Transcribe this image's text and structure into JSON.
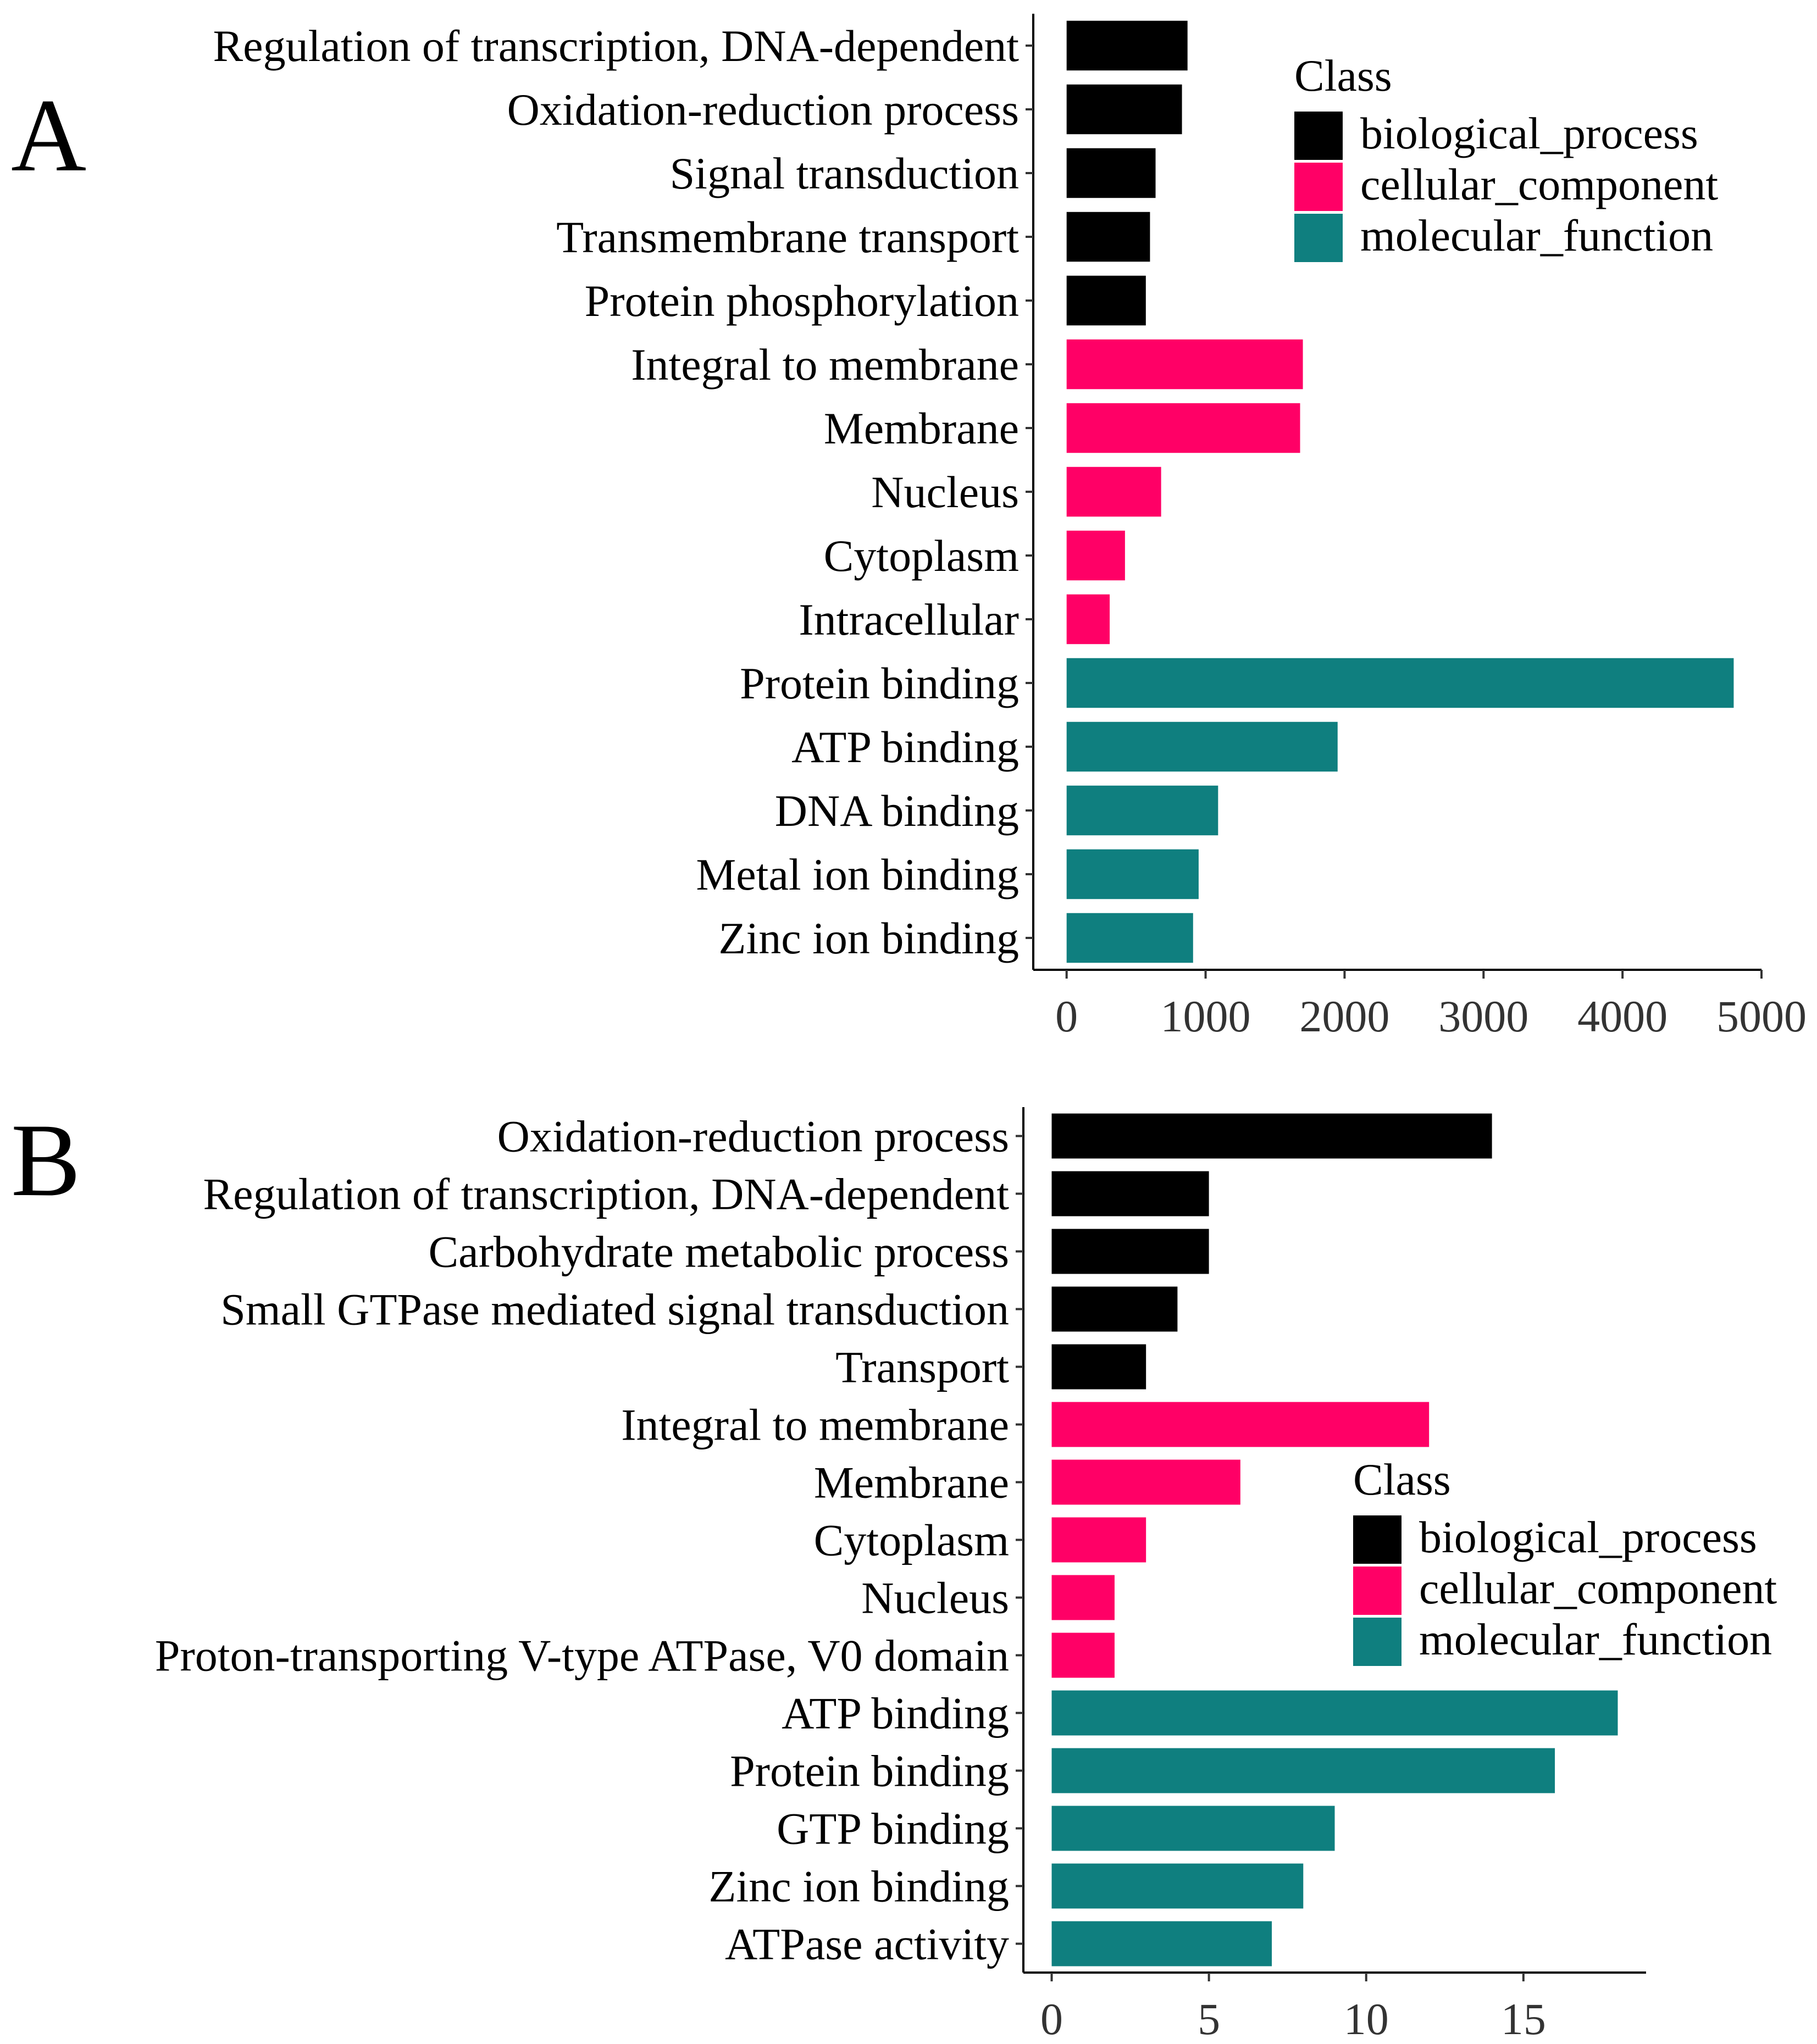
{
  "class_colors": {
    "biological_process": "#000000",
    "cellular_component": "#FF0066",
    "molecular_function": "#0F7F7F"
  },
  "chart_data": [
    {
      "type": "bar",
      "orientation": "horizontal",
      "panel": "A",
      "categories": [
        "Regulation of transcription, DNA-dependent",
        "Oxidation-reduction process",
        "Signal transduction",
        "Transmembrane transport",
        "Protein phosphorylation",
        "Integral to membrane",
        "Membrane",
        "Nucleus",
        "Cytoplasm",
        "Intracellular",
        "Protein binding",
        "ATP binding",
        "DNA binding",
        "Metal ion binding",
        "Zinc ion binding"
      ],
      "values": [
        870,
        830,
        640,
        600,
        570,
        1700,
        1680,
        680,
        420,
        310,
        4800,
        1950,
        1090,
        950,
        910
      ],
      "classes": [
        "biological_process",
        "biological_process",
        "biological_process",
        "biological_process",
        "biological_process",
        "cellular_component",
        "cellular_component",
        "cellular_component",
        "cellular_component",
        "cellular_component",
        "molecular_function",
        "molecular_function",
        "molecular_function",
        "molecular_function",
        "molecular_function"
      ],
      "xlim": [
        -240,
        5000
      ],
      "xticks": [
        0,
        1000,
        2000,
        3000,
        4000,
        5000
      ],
      "xtick_labels": [
        "0",
        "1000",
        "2000",
        "3000",
        "4000",
        "5000"
      ],
      "legend": {
        "title": "Class",
        "entries": [
          "biological_process",
          "cellular_component",
          "molecular_function"
        ],
        "position": "top-right"
      },
      "xlabel": "",
      "ylabel": ""
    },
    {
      "type": "bar",
      "orientation": "horizontal",
      "panel": "B",
      "categories": [
        "Oxidation-reduction process",
        "Regulation of transcription, DNA-dependent",
        "Carbohydrate metabolic process",
        "Small GTPase mediated signal transduction",
        "Transport",
        "Integral to membrane",
        "Membrane",
        "Cytoplasm",
        "Nucleus",
        "Proton-transporting V-type ATPase, V0 domain",
        "ATP binding",
        "Protein binding",
        "GTP binding",
        "Zinc ion binding",
        "ATPase activity"
      ],
      "values": [
        14,
        5,
        5,
        4,
        3,
        12,
        6,
        3,
        2,
        2,
        18,
        16,
        9,
        8,
        7
      ],
      "classes": [
        "biological_process",
        "biological_process",
        "biological_process",
        "biological_process",
        "biological_process",
        "cellular_component",
        "cellular_component",
        "cellular_component",
        "cellular_component",
        "cellular_component",
        "molecular_function",
        "molecular_function",
        "molecular_function",
        "molecular_function",
        "molecular_function"
      ],
      "xlim": [
        -0.9,
        18.9
      ],
      "xticks": [
        0,
        5,
        10,
        15
      ],
      "xtick_labels": [
        "0",
        "5",
        "10",
        "15"
      ],
      "legend": {
        "title": "Class",
        "entries": [
          "biological_process",
          "cellular_component",
          "molecular_function"
        ],
        "position": "center-right"
      },
      "xlabel": "",
      "ylabel": ""
    }
  ]
}
